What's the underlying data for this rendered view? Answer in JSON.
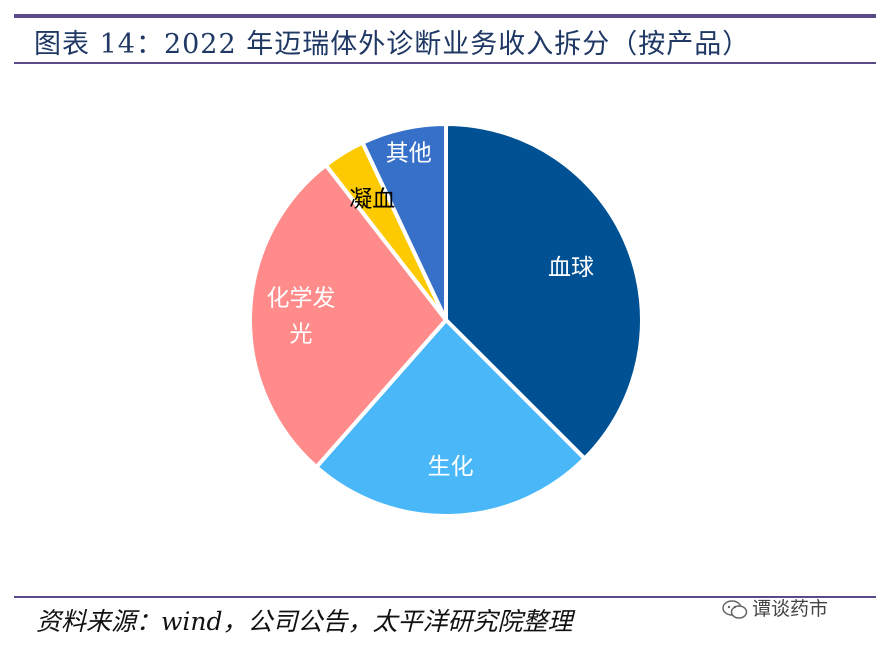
{
  "title": "图表 14：2022 年迈瑞体外诊断业务收入拆分（按产品）",
  "source": "资料来源：wind，公司公告，太平洋研究院整理",
  "watermark": "谭谈药市",
  "chart_data": {
    "type": "pie",
    "title": "",
    "start_angle_deg": 0,
    "direction": "clockwise",
    "slices": [
      {
        "label": "血球",
        "value": 37.5,
        "color": "#005193",
        "label_color": "#ffffff"
      },
      {
        "label": "生化",
        "value": 24.0,
        "color": "#4ab8f8",
        "label_color": "#ffffff"
      },
      {
        "label": "化学发光",
        "value": 28.0,
        "color": "#ff8b8b",
        "label_color": "#ffffff"
      },
      {
        "label": "凝血",
        "value": 3.5,
        "color": "#fdc900",
        "label_color": "#000000"
      },
      {
        "label": "其他",
        "value": 7.0,
        "color": "#3670c8",
        "label_color": "#ffffff"
      }
    ]
  }
}
